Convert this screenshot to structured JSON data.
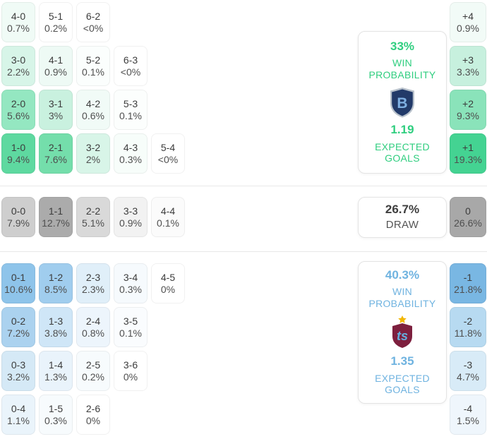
{
  "colors": {
    "home_accent": "#2fce7f",
    "away_accent": "#6fb3e0",
    "draw_number": "#3e3e3e",
    "draw_label": "#555555"
  },
  "home": {
    "rows": [
      [
        {
          "score": "4-0",
          "pct": "0.7%",
          "bg": "#f0fbf6"
        },
        {
          "score": "5-1",
          "pct": "0.2%",
          "bg": "#ffffff"
        },
        {
          "score": "6-2",
          "pct": "<0%",
          "bg": "#ffffff"
        }
      ],
      [
        {
          "score": "3-0",
          "pct": "2.2%",
          "bg": "#d7f5e8"
        },
        {
          "score": "4-1",
          "pct": "0.9%",
          "bg": "#eefaf5"
        },
        {
          "score": "5-2",
          "pct": "0.1%",
          "bg": "#fbfefd"
        },
        {
          "score": "6-3",
          "pct": "<0%",
          "bg": "#ffffff"
        }
      ],
      [
        {
          "score": "2-0",
          "pct": "5.6%",
          "bg": "#94e7c1"
        },
        {
          "score": "3-1",
          "pct": "3%",
          "bg": "#c9f1df"
        },
        {
          "score": "4-2",
          "pct": "0.6%",
          "bg": "#f1fbf7"
        },
        {
          "score": "5-3",
          "pct": "0.1%",
          "bg": "#fcfefd"
        }
      ],
      [
        {
          "score": "1-0",
          "pct": "9.4%",
          "bg": "#5ed9a0"
        },
        {
          "score": "2-1",
          "pct": "7.6%",
          "bg": "#74deab"
        },
        {
          "score": "3-2",
          "pct": "2%",
          "bg": "#d8f5e8"
        },
        {
          "score": "4-3",
          "pct": "0.3%",
          "bg": "#f7fdfa"
        },
        {
          "score": "5-4",
          "pct": "<0%",
          "bg": "#ffffff"
        }
      ]
    ],
    "margins": [
      {
        "label": "+4",
        "pct": "0.9%",
        "bg": "#f2fbf7"
      },
      {
        "label": "+3",
        "pct": "3.3%",
        "bg": "#c7f0de"
      },
      {
        "label": "+2",
        "pct": "9.3%",
        "bg": "#8ae3ba"
      },
      {
        "label": "+1",
        "pct": "19.3%",
        "bg": "#44d392"
      }
    ],
    "card": {
      "probability": "33%",
      "probability_label": "WIN PROBABILITY",
      "expected": "1.19",
      "expected_label": "EXPECTED GOALS"
    },
    "badge": {
      "letter": "B",
      "shield": "#223a69",
      "border": "#b9c2cc",
      "letter_color": "#7fb0e3"
    }
  },
  "draw": {
    "row": [
      {
        "score": "0-0",
        "pct": "7.9%",
        "bg": "#cecece"
      },
      {
        "score": "1-1",
        "pct": "12.7%",
        "bg": "#ababab"
      },
      {
        "score": "2-2",
        "pct": "5.1%",
        "bg": "#d9d9d9"
      },
      {
        "score": "3-3",
        "pct": "0.9%",
        "bg": "#f2f2f2"
      },
      {
        "score": "4-4",
        "pct": "0.1%",
        "bg": "#fbfbfb"
      }
    ],
    "margin": {
      "label": "0",
      "pct": "26.6%",
      "bg": "#a8a8a8"
    },
    "card": {
      "probability": "26.7%",
      "label": "DRAW"
    }
  },
  "away": {
    "rows": [
      [
        {
          "score": "0-1",
          "pct": "10.6%",
          "bg": "#8ec4ea"
        },
        {
          "score": "1-2",
          "pct": "8.5%",
          "bg": "#a0cdee"
        },
        {
          "score": "2-3",
          "pct": "2.3%",
          "bg": "#e0eff9"
        },
        {
          "score": "3-4",
          "pct": "0.3%",
          "bg": "#f6fafd"
        },
        {
          "score": "4-5",
          "pct": "0%",
          "bg": "#ffffff"
        }
      ],
      [
        {
          "score": "0-2",
          "pct": "7.2%",
          "bg": "#abd2ef"
        },
        {
          "score": "1-3",
          "pct": "3.8%",
          "bg": "#cfe6f7"
        },
        {
          "score": "2-4",
          "pct": "0.8%",
          "bg": "#edf5fc"
        },
        {
          "score": "3-5",
          "pct": "0.1%",
          "bg": "#fafcfe"
        }
      ],
      [
        {
          "score": "0-3",
          "pct": "3.2%",
          "bg": "#d5e9f6"
        },
        {
          "score": "1-4",
          "pct": "1.3%",
          "bg": "#e9f3fb"
        },
        {
          "score": "2-5",
          "pct": "0.2%",
          "bg": "#f7fbfd"
        },
        {
          "score": "3-6",
          "pct": "0%",
          "bg": "#ffffff"
        }
      ],
      [
        {
          "score": "0-4",
          "pct": "1.1%",
          "bg": "#eaf4fb"
        },
        {
          "score": "1-5",
          "pct": "0.3%",
          "bg": "#f7fbfd"
        },
        {
          "score": "2-6",
          "pct": "0%",
          "bg": "#ffffff"
        }
      ]
    ],
    "margins": [
      {
        "label": "-1",
        "pct": "21.8%",
        "bg": "#79b7e3"
      },
      {
        "label": "-2",
        "pct": "11.8%",
        "bg": "#b7daf1"
      },
      {
        "label": "-3",
        "pct": "4.7%",
        "bg": "#d8ebf7"
      },
      {
        "label": "-4",
        "pct": "1.5%",
        "bg": "#eff6fc"
      }
    ],
    "card": {
      "probability": "40.3%",
      "probability_label": "WIN PROBABILITY",
      "expected": "1.35",
      "expected_label": "EXPECTED GOALS"
    },
    "badge": {
      "monogram": "ts",
      "shield": "#7d1f3e",
      "monogram_color": "#64aede",
      "star_color": "#f2b705"
    }
  }
}
